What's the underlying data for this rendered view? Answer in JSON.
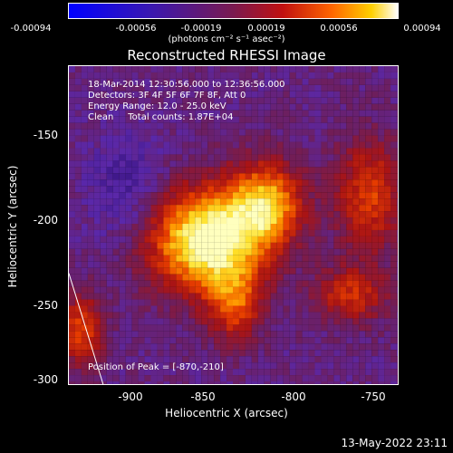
{
  "colorbar": {
    "tick_labels": [
      "-0.00094",
      "-0.00056",
      "-0.00019",
      "0.00019",
      "0.00056",
      "0.00094"
    ],
    "units": "(photons cm⁻² s⁻¹ asec⁻²)"
  },
  "title": "Reconstructed RHESSI Image",
  "info": {
    "line1": "18-Mar-2014 12:30:56.000 to 12:36:56.000",
    "line2": "Detectors: 3F 4F 5F 6F 7F 8F, Att 0",
    "line3": "Energy Range: 12.0 - 25.0 keV",
    "line4": "Clean     Total counts: 1.87E+04",
    "peak": "Position of Peak = [-870,-210]"
  },
  "axes": {
    "xlabel": "Heliocentric X (arcsec)",
    "ylabel": "Heliocentric Y (arcsec)",
    "xticks": [
      "-900",
      "-850",
      "-800",
      "-750"
    ],
    "yticks": [
      "-150",
      "-200",
      "-250",
      "-300"
    ]
  },
  "timestamp": "13-May-2022 23:11",
  "peak_position": [
    -870,
    -210
  ]
}
